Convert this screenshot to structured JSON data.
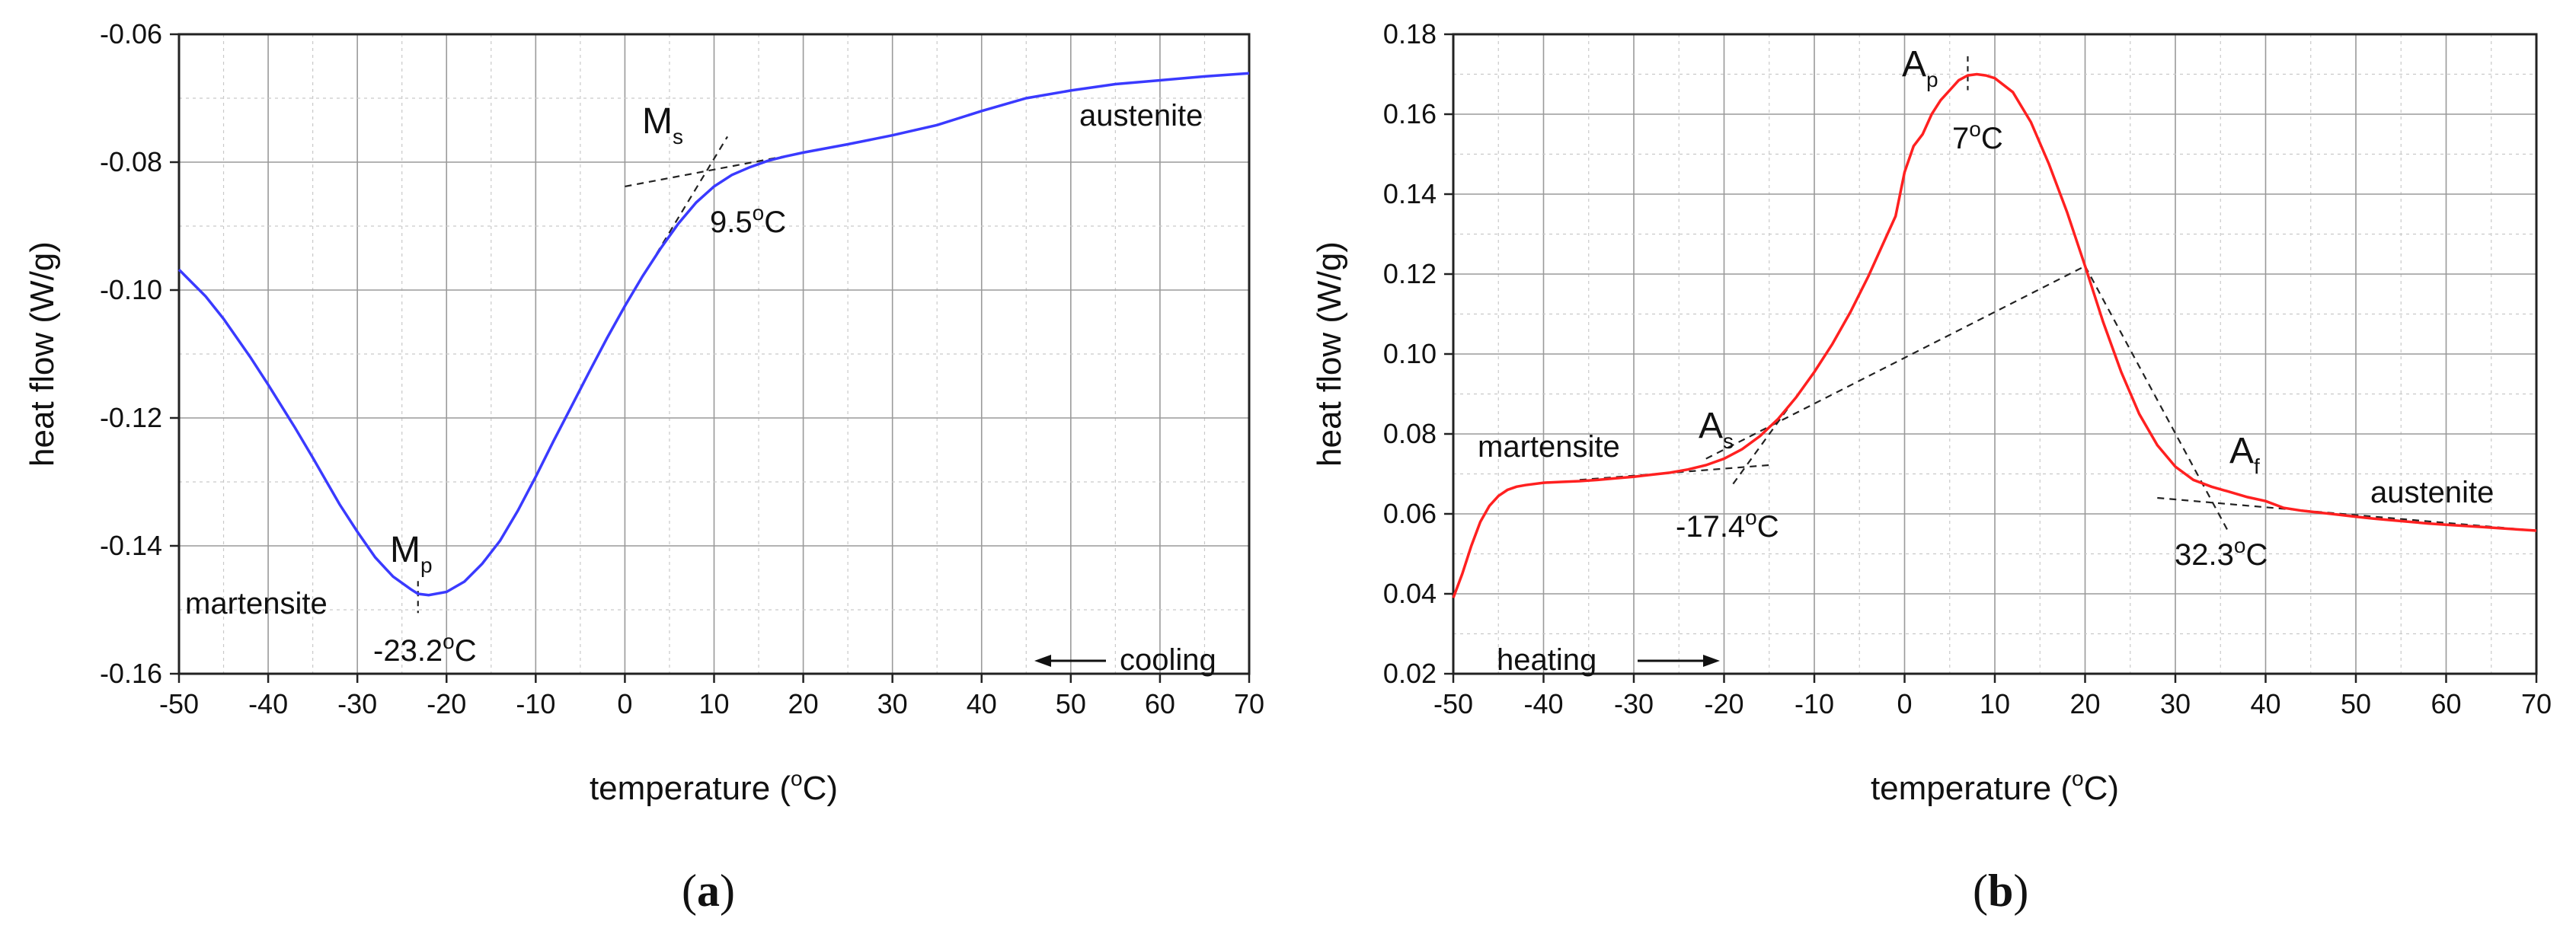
{
  "panels": [
    {
      "id": "a",
      "panel_label_prefix": "(",
      "panel_label": "a",
      "panel_label_suffix": ")",
      "xlabel": "temperature (",
      "xlabel_sup": "o",
      "xlabel_end": "C)",
      "ylabel": "heat flow (W/g)",
      "curve_color": "#3a3aff",
      "annotations": {
        "transition_label": "M",
        "transition_sub": "s",
        "transition_temp": "9.5",
        "transition_temp_sup": "o",
        "transition_temp_unit": "C",
        "peak_label": "M",
        "peak_sub": "p",
        "peak_temp": "-23.2",
        "peak_temp_sup": "o",
        "peak_temp_unit": "C",
        "phase_low": "martensite",
        "phase_high": "austenite",
        "direction": "cooling",
        "direction_arrow": "left"
      }
    },
    {
      "id": "b",
      "panel_label_prefix": "(",
      "panel_label": "b",
      "panel_label_suffix": ")",
      "xlabel": "temperature (",
      "xlabel_sup": "o",
      "xlabel_end": "C)",
      "ylabel": "heat flow (W/g)",
      "curve_color": "#ff2020",
      "annotations": {
        "start_label": "A",
        "start_sub": "s",
        "start_temp": "-17.4",
        "start_temp_sup": "o",
        "start_temp_unit": "C",
        "peak_label": "A",
        "peak_sub": "p",
        "peak_temp": "7",
        "peak_temp_sup": "o",
        "peak_temp_unit": "C",
        "finish_label": "A",
        "finish_sub": "f",
        "finish_temp": "32.3",
        "finish_temp_sup": "o",
        "finish_temp_unit": "C",
        "phase_low": "martensite",
        "phase_high": "austenite",
        "direction": "heating",
        "direction_arrow": "right"
      }
    }
  ],
  "chart_data": [
    {
      "type": "line",
      "title": "",
      "xlabel": "temperature (oC)",
      "ylabel": "heat flow (W/g)",
      "xlim": [
        -50,
        70
      ],
      "ylim": [
        -0.16,
        -0.06
      ],
      "xticks": [
        -50,
        -40,
        -30,
        -20,
        -10,
        0,
        10,
        20,
        30,
        40,
        50,
        60,
        70
      ],
      "xtick_labels": [
        "-50",
        "-40",
        "-30",
        "-20",
        "-10",
        "0",
        "10",
        "20",
        "30",
        "40",
        "50",
        "60",
        "70"
      ],
      "yticks": [
        -0.16,
        -0.14,
        -0.12,
        -0.1,
        -0.08,
        -0.06
      ],
      "ytick_labels": [
        "-0.16",
        "-0.14",
        "-0.12",
        "-0.10",
        "-0.08",
        "-0.06"
      ],
      "grid": true,
      "series": [
        {
          "name": "cooling",
          "color": "#3a3aff",
          "x": [
            -50,
            -47,
            -45,
            -42,
            -40,
            -37,
            -35,
            -32,
            -30,
            -28,
            -26,
            -24,
            -23.2,
            -22,
            -20,
            -18,
            -16,
            -14,
            -12,
            -10,
            -8,
            -6,
            -4,
            -2,
            0,
            2,
            4,
            6,
            8,
            10,
            12,
            14,
            16,
            18,
            20,
            25,
            30,
            35,
            40,
            45,
            50,
            55,
            60,
            65,
            70
          ],
          "y": [
            -0.0968,
            -0.101,
            -0.1045,
            -0.1105,
            -0.1148,
            -0.1215,
            -0.1262,
            -0.1335,
            -0.1378,
            -0.1418,
            -0.1448,
            -0.1468,
            -0.1475,
            -0.1477,
            -0.1472,
            -0.1456,
            -0.1428,
            -0.1392,
            -0.1345,
            -0.1292,
            -0.1236,
            -0.1182,
            -0.1128,
            -0.1075,
            -0.1025,
            -0.0978,
            -0.0935,
            -0.0896,
            -0.0863,
            -0.0838,
            -0.082,
            -0.0808,
            -0.0798,
            -0.0791,
            -0.0785,
            -0.0772,
            -0.0758,
            -0.0742,
            -0.072,
            -0.07,
            -0.0688,
            -0.0678,
            -0.0672,
            -0.0666,
            -0.0661
          ]
        }
      ],
      "tangent_lines": [
        {
          "x": [
            0,
            25
          ],
          "y": [
            -0.0838,
            -0.0772
          ]
        },
        {
          "x": [
            0,
            11.5
          ],
          "y": [
            -0.1025,
            -0.076
          ]
        }
      ],
      "marker_lines": [
        {
          "x": [
            -23.2,
            -23.2
          ],
          "y": [
            -0.1455,
            -0.1505
          ]
        }
      ]
    },
    {
      "type": "line",
      "title": "",
      "xlabel": "temperature (oC)",
      "ylabel": "heat flow (W/g)",
      "xlim": [
        -50,
        70
      ],
      "ylim": [
        0.02,
        0.18
      ],
      "xticks": [
        -50,
        -40,
        -30,
        -20,
        -10,
        0,
        10,
        20,
        30,
        40,
        50,
        60,
        70
      ],
      "xtick_labels": [
        "-50",
        "-40",
        "-30",
        "-20",
        "-10",
        "0",
        "10",
        "20",
        "30",
        "40",
        "50",
        "60",
        "70"
      ],
      "yticks": [
        0.02,
        0.04,
        0.06,
        0.08,
        0.1,
        0.12,
        0.14,
        0.16,
        0.18
      ],
      "ytick_labels": [
        "0.02",
        "0.04",
        "0.06",
        "0.08",
        "0.10",
        "0.12",
        "0.14",
        "0.16",
        "0.18"
      ],
      "grid": true,
      "series": [
        {
          "name": "heating",
          "color": "#ff2020",
          "x": [
            -50,
            -49,
            -48,
            -47,
            -46,
            -45,
            -44,
            -43,
            -42,
            -40,
            -38,
            -36,
            -34,
            -32,
            -30,
            -28,
            -26,
            -24,
            -22,
            -20,
            -18,
            -16,
            -14,
            -12,
            -10,
            -8,
            -6,
            -4,
            -2,
            -1,
            0,
            1,
            2,
            3,
            4,
            5,
            6,
            7,
            8,
            9,
            10,
            12,
            14,
            16,
            18,
            20,
            22,
            24,
            26,
            28,
            30,
            32,
            34,
            36,
            38,
            40,
            42,
            44,
            46,
            48,
            50,
            52,
            54,
            56,
            58,
            60,
            62,
            64,
            66,
            68,
            70
          ],
          "y": [
            0.039,
            0.045,
            0.052,
            0.058,
            0.062,
            0.0645,
            0.066,
            0.0668,
            0.0672,
            0.0678,
            0.068,
            0.0682,
            0.0685,
            0.0689,
            0.0693,
            0.0698,
            0.0703,
            0.0711,
            0.0722,
            0.0738,
            0.0762,
            0.0795,
            0.0838,
            0.0892,
            0.0955,
            0.1025,
            0.1105,
            0.1195,
            0.1295,
            0.1345,
            0.1455,
            0.152,
            0.155,
            0.16,
            0.1635,
            0.166,
            0.1685,
            0.1697,
            0.17,
            0.1697,
            0.169,
            0.1655,
            0.158,
            0.1475,
            0.1355,
            0.122,
            0.108,
            0.0955,
            0.085,
            0.0772,
            0.0718,
            0.0685,
            0.0668,
            0.0655,
            0.0642,
            0.0632,
            0.0615,
            0.0608,
            0.0603,
            0.0598,
            0.0593,
            0.0588,
            0.0584,
            0.058,
            0.0576,
            0.0573,
            0.057,
            0.0567,
            0.0564,
            0.0561,
            0.0558
          ]
        }
      ],
      "tangent_lines": [
        {
          "x": [
            -36,
            -15
          ],
          "y": [
            0.0685,
            0.0722
          ]
        },
        {
          "x": [
            -19,
            -10
          ],
          "y": [
            0.0675,
            0.0955
          ]
        },
        {
          "x": [
            -22,
            20
          ],
          "y": [
            0.0738,
            0.122
          ]
        },
        {
          "x": [
            20,
            36
          ],
          "y": [
            0.122,
            0.055
          ]
        },
        {
          "x": [
            28,
            70
          ],
          "y": [
            0.064,
            0.0558
          ]
        }
      ],
      "marker_lines": [
        {
          "x": [
            7,
            7
          ],
          "y": [
            0.1745,
            0.166
          ]
        }
      ]
    }
  ]
}
